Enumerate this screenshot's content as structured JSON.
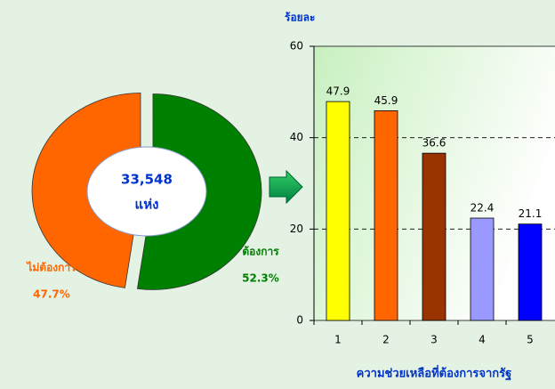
{
  "chart_data": [
    {
      "type": "pie",
      "categories": [
        "ไม่ต้องการ",
        "ต้องการ"
      ],
      "values": [
        47.7,
        52.3
      ],
      "value_labels": [
        "47.7%",
        "52.3%"
      ],
      "colors": [
        "#ff6600",
        "#008000"
      ],
      "center_text": [
        "33,548",
        "แห่ง"
      ]
    },
    {
      "type": "bar",
      "ylabel": "ร้อยละ",
      "xlabel": "ความช่วยเหลือที่ต้องการจากรัฐ",
      "categories": [
        "1",
        "2",
        "3",
        "4",
        "5"
      ],
      "values": [
        47.9,
        45.9,
        36.6,
        22.4,
        21.1
      ],
      "colors": [
        "#ffff00",
        "#ff6600",
        "#993300",
        "#9999ff",
        "#0000ff"
      ],
      "ylim": [
        0,
        60
      ],
      "yticks": [
        0,
        20,
        40,
        60
      ],
      "grid": true
    }
  ]
}
